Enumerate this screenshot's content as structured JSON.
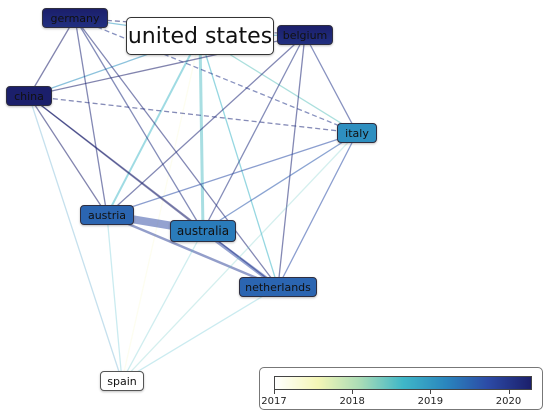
{
  "nodes": [
    {
      "id": "united-states",
      "label": "united states",
      "year": 2017.0
    },
    {
      "id": "germany",
      "label": "germany",
      "year": 2020.1
    },
    {
      "id": "belgium",
      "label": "belgium",
      "year": 2020.1
    },
    {
      "id": "china",
      "label": "china",
      "year": 2020.4
    },
    {
      "id": "italy",
      "label": "italy",
      "year": 2019.1
    },
    {
      "id": "austria",
      "label": "austria",
      "year": 2019.5
    },
    {
      "id": "australia",
      "label": "australia",
      "year": 2019.3
    },
    {
      "id": "netherlands",
      "label": "netherlands",
      "year": 2019.5
    },
    {
      "id": "spain",
      "label": "spain",
      "year": 2017.0
    }
  ],
  "links": [
    {
      "source": "united-states",
      "target": "germany"
    },
    {
      "source": "united-states",
      "target": "belgium"
    },
    {
      "source": "united-states",
      "target": "china"
    },
    {
      "source": "united-states",
      "target": "italy"
    },
    {
      "source": "united-states",
      "target": "austria"
    },
    {
      "source": "united-states",
      "target": "australia"
    },
    {
      "source": "united-states",
      "target": "netherlands"
    },
    {
      "source": "united-states",
      "target": "spain"
    },
    {
      "source": "germany",
      "target": "belgium"
    },
    {
      "source": "germany",
      "target": "china"
    },
    {
      "source": "germany",
      "target": "austria"
    },
    {
      "source": "germany",
      "target": "australia"
    },
    {
      "source": "germany",
      "target": "netherlands"
    },
    {
      "source": "germany",
      "target": "italy"
    },
    {
      "source": "belgium",
      "target": "china"
    },
    {
      "source": "belgium",
      "target": "austria"
    },
    {
      "source": "belgium",
      "target": "australia"
    },
    {
      "source": "belgium",
      "target": "netherlands"
    },
    {
      "source": "belgium",
      "target": "italy"
    },
    {
      "source": "china",
      "target": "austria"
    },
    {
      "source": "china",
      "target": "australia"
    },
    {
      "source": "china",
      "target": "netherlands"
    },
    {
      "source": "china",
      "target": "italy"
    },
    {
      "source": "china",
      "target": "spain"
    },
    {
      "source": "austria",
      "target": "australia"
    },
    {
      "source": "austria",
      "target": "netherlands"
    },
    {
      "source": "austria",
      "target": "italy"
    },
    {
      "source": "austria",
      "target": "spain"
    },
    {
      "source": "australia",
      "target": "netherlands"
    },
    {
      "source": "australia",
      "target": "italy"
    },
    {
      "source": "australia",
      "target": "spain"
    },
    {
      "source": "netherlands",
      "target": "italy"
    },
    {
      "source": "netherlands",
      "target": "spain"
    },
    {
      "source": "italy",
      "target": "spain"
    }
  ],
  "legend": {
    "min": 2017,
    "max": 2020.3,
    "ticks": [
      "2017",
      "2018",
      "2019",
      "2020"
    ],
    "colors": [
      "#ffffff",
      "#f4f6b6",
      "#a9dcb6",
      "#3fb7c8",
      "#2a86be",
      "#2c4aa6",
      "#1b1f6b"
    ]
  },
  "colors": {
    "node_light": "#f4f4f4",
    "node_teal": "#55cfd9",
    "node_purple": "#8b7fe3"
  }
}
